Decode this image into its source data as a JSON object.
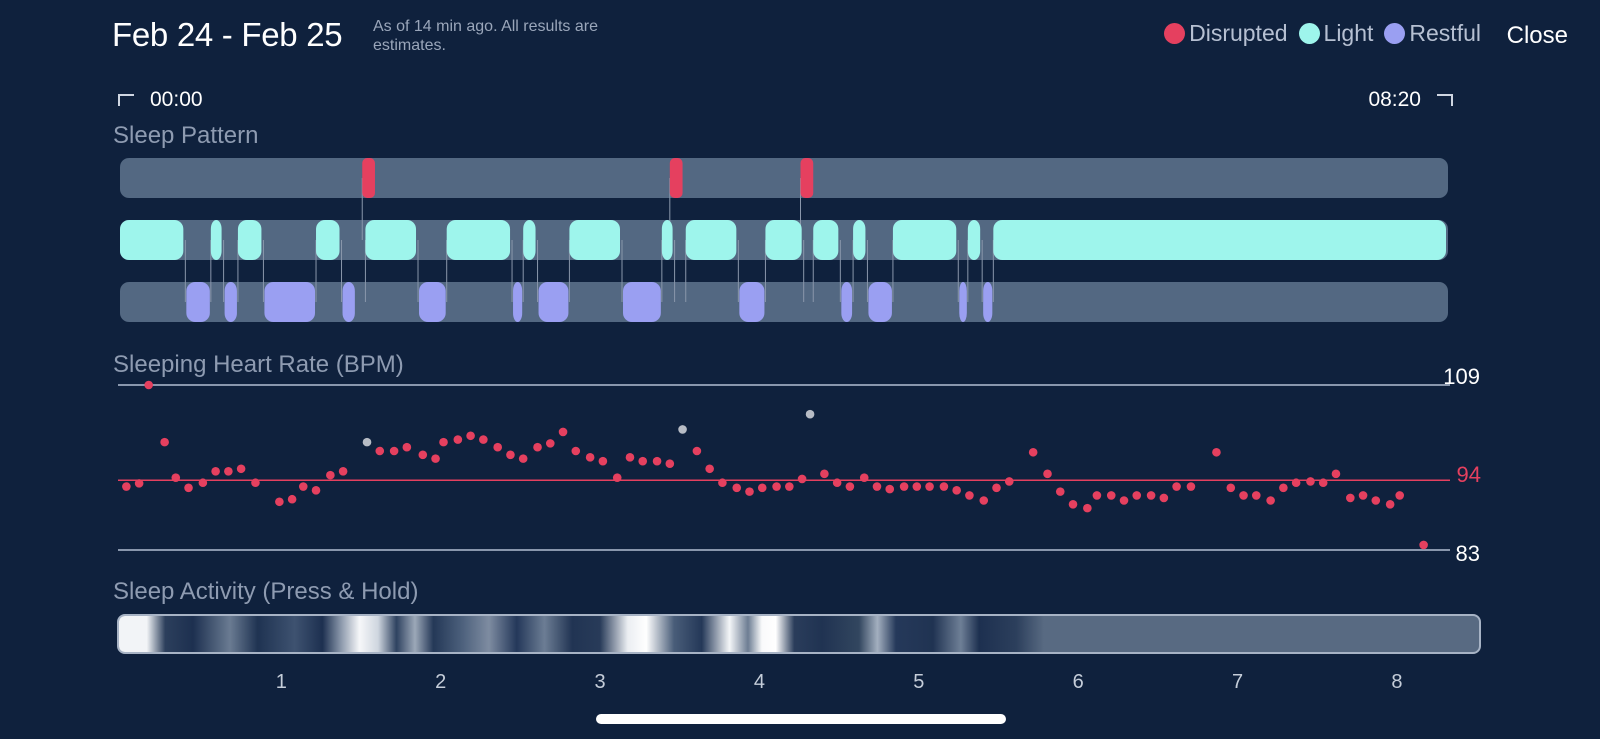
{
  "header": {
    "date_range": "Feb 24 - Feb 25",
    "as_of": "As of 14 min ago. All results are estimates.",
    "close_label": "Close"
  },
  "legend": [
    {
      "label": "Disrupted",
      "color": "#e5405f"
    },
    {
      "label": "Light",
      "color": "#9ef5ec"
    },
    {
      "label": "Restful",
      "color": "#9a9ff2"
    }
  ],
  "time_range": {
    "start": "00:00",
    "end": "08:20"
  },
  "sleep_pattern": {
    "title": "Sleep Pattern",
    "total_hours": 8.333,
    "disrupted": [
      [
        1.52,
        1.6
      ],
      [
        3.45,
        3.53
      ],
      [
        4.27,
        4.35
      ]
    ],
    "light": [
      [
        0,
        0.41
      ],
      [
        0.57,
        0.65
      ],
      [
        0.74,
        0.9
      ],
      [
        1.23,
        1.39
      ],
      [
        1.54,
        1.87
      ],
      [
        2.05,
        2.46
      ],
      [
        2.53,
        2.62
      ],
      [
        2.82,
        3.15
      ],
      [
        3.4,
        3.48
      ],
      [
        3.55,
        3.88
      ],
      [
        4.05,
        4.29
      ],
      [
        4.35,
        4.52
      ],
      [
        4.6,
        4.69
      ],
      [
        4.85,
        5.26
      ],
      [
        5.32,
        5.41
      ],
      [
        5.48,
        8.333
      ]
    ],
    "restful": [
      [
        0.41,
        0.57
      ],
      [
        0.65,
        0.74
      ],
      [
        0.9,
        1.23
      ],
      [
        1.39,
        1.48
      ],
      [
        1.87,
        2.05
      ],
      [
        2.46,
        2.53
      ],
      [
        2.62,
        2.82
      ],
      [
        3.15,
        3.4
      ],
      [
        3.88,
        4.05
      ],
      [
        4.52,
        4.6
      ],
      [
        4.69,
        4.85
      ],
      [
        5.26,
        5.32
      ],
      [
        5.41,
        5.48
      ]
    ]
  },
  "heart_rate": {
    "title": "Sleeping Heart Rate (BPM)",
    "max_label": "109",
    "avg_label": "94",
    "min_label": "83",
    "max": 109,
    "avg": 94,
    "min": 83,
    "points": [
      [
        0.04,
        93
      ],
      [
        0.12,
        93.5
      ],
      [
        0.18,
        109
      ],
      [
        0.28,
        100
      ],
      [
        0.35,
        94.4
      ],
      [
        0.43,
        92.8
      ],
      [
        0.52,
        93.6
      ],
      [
        0.6,
        95.4
      ],
      [
        0.68,
        95.4
      ],
      [
        0.76,
        95.8
      ],
      [
        0.85,
        93.6
      ],
      [
        1.0,
        90.6
      ],
      [
        1.08,
        91
      ],
      [
        1.15,
        93
      ],
      [
        1.23,
        92.4
      ],
      [
        1.32,
        94.8
      ],
      [
        1.4,
        95.4
      ],
      [
        1.55,
        100,
        "grey"
      ],
      [
        1.63,
        98.6
      ],
      [
        1.72,
        98.6
      ],
      [
        1.8,
        99.2
      ],
      [
        1.9,
        98
      ],
      [
        1.98,
        97.4
      ],
      [
        2.03,
        100
      ],
      [
        2.12,
        100.4
      ],
      [
        2.2,
        101
      ],
      [
        2.28,
        100.4
      ],
      [
        2.37,
        99.2
      ],
      [
        2.45,
        98
      ],
      [
        2.53,
        97.4
      ],
      [
        2.62,
        99.2
      ],
      [
        2.7,
        99.8
      ],
      [
        2.78,
        101.6
      ],
      [
        2.86,
        98.6
      ],
      [
        2.95,
        97.6
      ],
      [
        3.03,
        97
      ],
      [
        3.12,
        94.4
      ],
      [
        3.2,
        97.6
      ],
      [
        3.28,
        97
      ],
      [
        3.37,
        97
      ],
      [
        3.45,
        96.6
      ],
      [
        3.53,
        102,
        "grey"
      ],
      [
        3.62,
        98.6
      ],
      [
        3.7,
        95.8
      ],
      [
        3.78,
        93.6
      ],
      [
        3.87,
        92.8
      ],
      [
        3.95,
        92.2
      ],
      [
        4.03,
        92.8
      ],
      [
        4.12,
        93
      ],
      [
        4.2,
        93
      ],
      [
        4.28,
        94.2
      ],
      [
        4.33,
        104.4,
        "grey"
      ],
      [
        4.42,
        95
      ],
      [
        4.5,
        93.6
      ],
      [
        4.58,
        93
      ],
      [
        4.67,
        94.4
      ],
      [
        4.75,
        93
      ],
      [
        4.83,
        92.6
      ],
      [
        4.92,
        93
      ],
      [
        5.0,
        93
      ],
      [
        5.08,
        93
      ],
      [
        5.17,
        93
      ],
      [
        5.25,
        92.4
      ],
      [
        5.33,
        91.6
      ],
      [
        5.42,
        90.8
      ],
      [
        5.5,
        92.8
      ],
      [
        5.58,
        93.8
      ],
      [
        5.73,
        98.4
      ],
      [
        5.82,
        95
      ],
      [
        5.9,
        92.2
      ],
      [
        5.98,
        90.2
      ],
      [
        6.07,
        89.6
      ],
      [
        6.13,
        91.6
      ],
      [
        6.22,
        91.6
      ],
      [
        6.3,
        90.8
      ],
      [
        6.38,
        91.6
      ],
      [
        6.47,
        91.6
      ],
      [
        6.55,
        91.2
      ],
      [
        6.63,
        93
      ],
      [
        6.72,
        93
      ],
      [
        6.88,
        98.4
      ],
      [
        6.97,
        92.8
      ],
      [
        7.05,
        91.6
      ],
      [
        7.13,
        91.6
      ],
      [
        7.22,
        90.8
      ],
      [
        7.3,
        92.8
      ],
      [
        7.38,
        93.6
      ],
      [
        7.47,
        93.8
      ],
      [
        7.55,
        93.6
      ],
      [
        7.63,
        95
      ],
      [
        7.72,
        91.2
      ],
      [
        7.8,
        91.6
      ],
      [
        7.88,
        90.8
      ],
      [
        7.97,
        90.2
      ],
      [
        8.03,
        91.6
      ],
      [
        8.18,
        83.8
      ]
    ]
  },
  "sleep_activity": {
    "title": "Sleep Activity (Press & Hold)"
  },
  "hour_axis": {
    "labels": [
      "1",
      "2",
      "3",
      "4",
      "5",
      "6",
      "7",
      "8"
    ],
    "values": [
      1,
      2,
      3,
      4,
      5,
      6,
      7,
      8
    ]
  }
}
